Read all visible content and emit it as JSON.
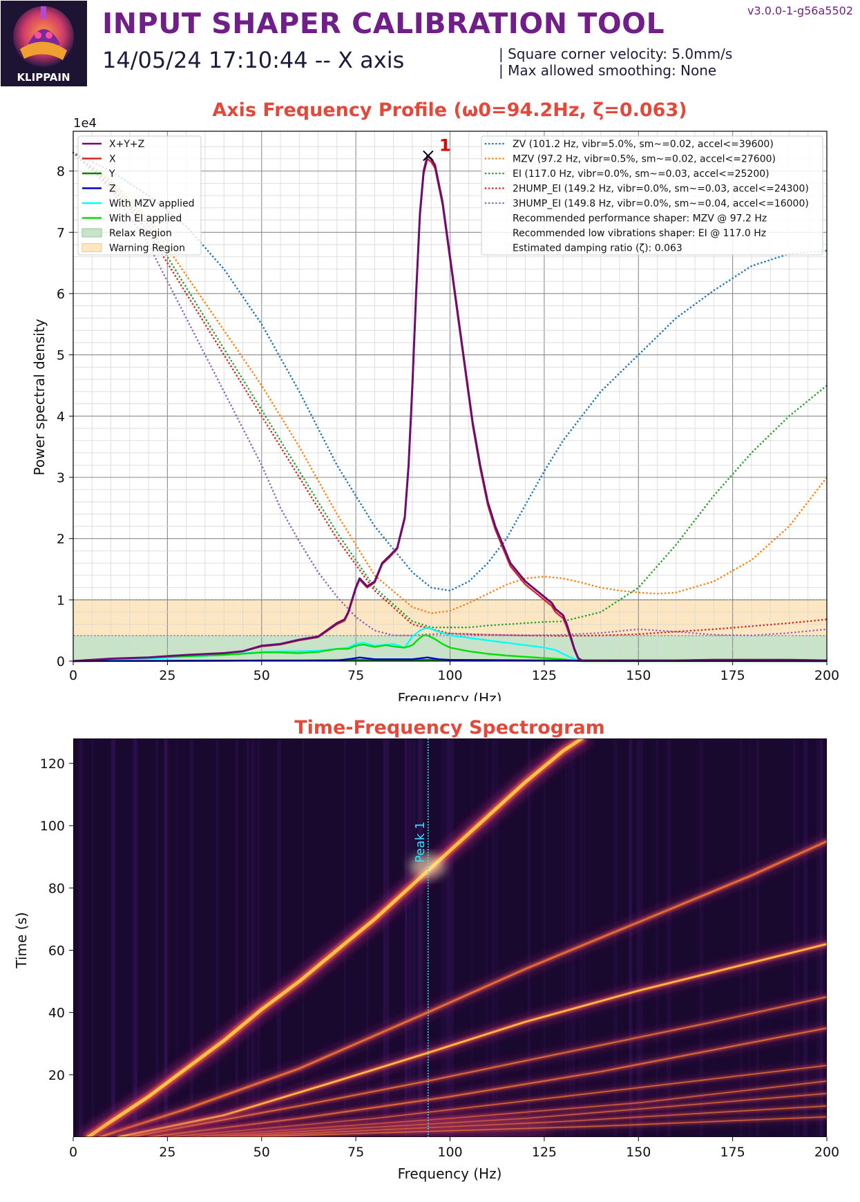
{
  "header": {
    "logo_text": "KLIPPAIN",
    "title": "INPUT SHAPER CALIBRATION TOOL",
    "subtitle": "14/05/24 17:10:44 -- X axis",
    "version": "v3.0.0-1-g56a5502",
    "info_line1": "| Square corner velocity: 5.0mm/s",
    "info_line2": "| Max allowed smoothing: None"
  },
  "colors": {
    "title_purple": "#701e88",
    "chart_title_red": "#e3493b",
    "sum_line": "#6a0f6f",
    "x_line": "#d62728",
    "y_line": "#008000",
    "z_line": "#0000cc",
    "mzv_applied": "#00ffff",
    "ei_applied": "#00e000",
    "relax_region": "#c8e4c8",
    "warning_region": "#fde7c3",
    "zv": "#1f77b4",
    "mzv": "#ff7f0e",
    "ei": "#2ca02c",
    "hump2": "#d62728",
    "hump3": "#9467bd"
  },
  "chart_data": [
    {
      "type": "line",
      "title": "Axis Frequency Profile (ω0=94.2Hz, ζ=0.063)",
      "xlabel": "Frequency (Hz)",
      "ylabel": "Power spectral density",
      "y_scale_label": "1e4",
      "xlim": [
        0,
        200
      ],
      "ylim": [
        0,
        8.65
      ],
      "x_ticks": [
        "0",
        "25",
        "50",
        "75",
        "100",
        "125",
        "150",
        "175",
        "200"
      ],
      "y_ticks": [
        "0",
        "1",
        "2",
        "3",
        "4",
        "5",
        "6",
        "7",
        "8"
      ],
      "grid": true,
      "peak": {
        "label": "1",
        "x": 94.2,
        "y": 8.25
      },
      "regions": [
        {
          "name": "Relax Region",
          "from": 0,
          "to": 0.42
        },
        {
          "name": "Warning Region",
          "from": 0.42,
          "to": 1.0
        }
      ],
      "legend_left": [
        "X+Y+Z",
        "X",
        "Y",
        "Z",
        "With MZV applied",
        "With EI applied",
        "Relax Region",
        "Warning Region"
      ],
      "legend_right": [
        "ZV (101.2 Hz, vibr=5.0%, sm~=0.02, accel<=39600)",
        "MZV (97.2 Hz, vibr=0.5%, sm~=0.02, accel<=27600)",
        "EI (117.0 Hz, vibr=0.0%, sm~=0.03, accel<=25200)",
        "2HUMP_EI (149.2 Hz, vibr=0.0%, sm~=0.03, accel<=24300)",
        "3HUMP_EI (149.8 Hz, vibr=0.0%, sm~=0.04, accel<=16000)",
        "Recommended performance shaper: MZV @ 97.2 Hz",
        "Recommended low vibrations shaper: EI @ 117.0 Hz",
        "Estimated damping ratio (ζ): 0.063"
      ],
      "series": [
        {
          "name": "X+Y+Z",
          "style": "solid",
          "color": "#6a0f6f",
          "x": [
            0,
            5,
            10,
            20,
            30,
            40,
            45,
            50,
            55,
            60,
            65,
            70,
            72,
            73,
            75,
            76,
            78,
            80,
            82,
            84,
            86,
            88,
            89,
            90,
            91,
            92,
            93,
            94,
            95,
            96,
            98,
            100,
            102,
            104,
            106,
            108,
            110,
            112,
            114,
            116,
            118,
            120,
            122,
            125,
            127,
            128,
            130,
            131,
            132,
            133,
            134,
            135,
            140,
            150,
            160,
            170,
            180,
            190,
            200
          ],
          "y": [
            0,
            0.02,
            0.04,
            0.06,
            0.1,
            0.13,
            0.16,
            0.25,
            0.28,
            0.35,
            0.4,
            0.62,
            0.68,
            0.8,
            1.2,
            1.35,
            1.22,
            1.3,
            1.6,
            1.72,
            1.85,
            2.35,
            3.2,
            4.5,
            6.0,
            7.3,
            8.0,
            8.25,
            8.2,
            8.1,
            7.5,
            6.6,
            5.7,
            4.8,
            3.9,
            3.2,
            2.6,
            2.2,
            1.9,
            1.6,
            1.45,
            1.3,
            1.2,
            1.05,
            0.95,
            0.85,
            0.75,
            0.6,
            0.4,
            0.2,
            0.05,
            0.01,
            0.01,
            0.01,
            0.01,
            0.02,
            0.02,
            0.02,
            0.01
          ]
        },
        {
          "name": "X",
          "style": "solid",
          "color": "#d62728",
          "x": [
            0,
            5,
            10,
            20,
            30,
            40,
            45,
            50,
            55,
            60,
            65,
            70,
            72,
            73,
            75,
            76,
            78,
            80,
            82,
            84,
            86,
            88,
            89,
            90,
            91,
            92,
            93,
            94,
            95,
            96,
            98,
            100,
            102,
            104,
            106,
            108,
            110,
            112,
            114,
            116,
            118,
            120,
            122,
            125,
            127,
            128,
            130,
            131,
            132,
            133,
            134,
            135,
            140,
            150,
            160,
            170,
            180,
            190,
            200
          ],
          "y": [
            0,
            0.02,
            0.04,
            0.06,
            0.1,
            0.13,
            0.16,
            0.24,
            0.27,
            0.34,
            0.39,
            0.6,
            0.66,
            0.78,
            1.18,
            1.33,
            1.2,
            1.28,
            1.58,
            1.7,
            1.83,
            2.32,
            3.15,
            4.45,
            5.95,
            7.25,
            7.95,
            8.2,
            8.15,
            8.05,
            7.45,
            6.55,
            5.65,
            4.75,
            3.85,
            3.15,
            2.55,
            2.15,
            1.85,
            1.55,
            1.4,
            1.25,
            1.15,
            1.0,
            0.9,
            0.8,
            0.7,
            0.55,
            0.37,
            0.18,
            0.04,
            0.01,
            0.01,
            0.01,
            0.01,
            0.02,
            0.02,
            0.02,
            0.01
          ]
        },
        {
          "name": "Y",
          "style": "solid",
          "color": "#008000",
          "x": [
            0,
            40,
            50,
            60,
            75,
            80,
            95,
            110,
            130,
            135,
            150,
            200
          ],
          "y": [
            0,
            0.005,
            0.01,
            0.01,
            0.02,
            0.015,
            0.02,
            0.02,
            0.01,
            0.005,
            0.005,
            0.005
          ]
        },
        {
          "name": "Z",
          "style": "solid",
          "color": "#0000cc",
          "x": [
            0,
            50,
            55,
            70,
            74,
            76,
            80,
            86,
            90,
            94,
            97,
            100,
            110,
            140,
            200
          ],
          "y": [
            0,
            0.01,
            0.01,
            0.01,
            0.04,
            0.06,
            0.03,
            0.03,
            0.03,
            0.06,
            0.03,
            0.02,
            0.01,
            0.005,
            0.0
          ]
        },
        {
          "name": "With MZV applied",
          "style": "solid",
          "color": "#00ffff",
          "x": [
            0,
            20,
            40,
            50,
            55,
            60,
            65,
            70,
            73,
            75,
            77,
            80,
            85,
            88,
            90,
            92,
            94,
            96,
            100,
            105,
            110,
            115,
            120,
            125,
            128,
            130,
            132,
            134,
            135,
            150,
            200
          ],
          "y": [
            0,
            0.04,
            0.1,
            0.15,
            0.16,
            0.16,
            0.17,
            0.2,
            0.22,
            0.28,
            0.3,
            0.25,
            0.28,
            0.22,
            0.4,
            0.5,
            0.55,
            0.5,
            0.42,
            0.38,
            0.34,
            0.3,
            0.26,
            0.22,
            0.18,
            0.12,
            0.06,
            0.01,
            0.0,
            0.0,
            0.0
          ]
        },
        {
          "name": "With EI applied",
          "style": "solid",
          "color": "#00e000",
          "x": [
            0,
            10,
            20,
            30,
            40,
            45,
            50,
            55,
            60,
            65,
            70,
            73,
            75,
            77,
            80,
            83,
            86,
            88,
            90,
            92,
            93,
            94,
            96,
            98,
            100,
            105,
            110,
            115,
            120,
            125,
            130,
            133,
            135,
            150,
            200
          ],
          "y": [
            0,
            0.04,
            0.06,
            0.08,
            0.1,
            0.12,
            0.14,
            0.14,
            0.13,
            0.15,
            0.2,
            0.2,
            0.25,
            0.27,
            0.23,
            0.26,
            0.23,
            0.22,
            0.26,
            0.38,
            0.42,
            0.42,
            0.36,
            0.28,
            0.22,
            0.16,
            0.12,
            0.09,
            0.07,
            0.05,
            0.03,
            0.01,
            0.0,
            0.0,
            0.0
          ]
        },
        {
          "name": "ZV",
          "style": "dotted",
          "color": "#1f77b4",
          "x": [
            0,
            10,
            20,
            30,
            40,
            50,
            60,
            70,
            80,
            90,
            95,
            100,
            105,
            110,
            115,
            120,
            125,
            130,
            140,
            150,
            160,
            170,
            180,
            190,
            200
          ],
          "y": [
            8.3,
            8.0,
            7.6,
            7.1,
            6.4,
            5.5,
            4.4,
            3.2,
            2.2,
            1.45,
            1.2,
            1.15,
            1.3,
            1.6,
            2.0,
            2.55,
            3.1,
            3.6,
            4.4,
            5.0,
            5.6,
            6.05,
            6.45,
            6.65,
            6.7
          ]
        },
        {
          "name": "MZV",
          "style": "dotted",
          "color": "#ff7f0e",
          "x": [
            0,
            10,
            20,
            30,
            40,
            50,
            60,
            70,
            80,
            90,
            95,
            100,
            105,
            110,
            115,
            120,
            125,
            130,
            135,
            140,
            145,
            150,
            155,
            160,
            170,
            180,
            190,
            200
          ],
          "y": [
            8.3,
            7.85,
            7.2,
            6.3,
            5.4,
            4.5,
            3.5,
            2.4,
            1.4,
            0.88,
            0.78,
            0.82,
            0.95,
            1.1,
            1.25,
            1.35,
            1.38,
            1.35,
            1.28,
            1.2,
            1.15,
            1.12,
            1.1,
            1.12,
            1.3,
            1.65,
            2.2,
            3.0
          ]
        },
        {
          "name": "EI",
          "style": "dotted",
          "color": "#2ca02c",
          "x": [
            0,
            10,
            20,
            30,
            40,
            50,
            60,
            70,
            80,
            90,
            95,
            100,
            105,
            110,
            115,
            120,
            125,
            130,
            140,
            150,
            160,
            170,
            180,
            190,
            200
          ],
          "y": [
            8.3,
            7.8,
            7.1,
            6.1,
            5.1,
            4.1,
            3.1,
            2.1,
            1.2,
            0.65,
            0.55,
            0.55,
            0.55,
            0.58,
            0.6,
            0.62,
            0.64,
            0.65,
            0.8,
            1.2,
            1.9,
            2.7,
            3.4,
            4.0,
            4.5
          ]
        },
        {
          "name": "2HUMP_EI",
          "style": "dotted",
          "color": "#d62728",
          "x": [
            0,
            10,
            20,
            30,
            40,
            50,
            60,
            70,
            80,
            90,
            100,
            110,
            120,
            130,
            140,
            150,
            160,
            170,
            180,
            190,
            200
          ],
          "y": [
            8.3,
            7.75,
            7.0,
            6.0,
            5.0,
            4.0,
            3.0,
            2.0,
            1.15,
            0.6,
            0.45,
            0.43,
            0.42,
            0.41,
            0.42,
            0.44,
            0.48,
            0.52,
            0.57,
            0.62,
            0.68
          ]
        },
        {
          "name": "3HUMP_EI",
          "style": "dotted",
          "color": "#9467bd",
          "x": [
            0,
            10,
            20,
            30,
            40,
            50,
            55,
            60,
            65,
            70,
            75,
            80,
            85,
            90,
            95,
            100,
            110,
            120,
            130,
            140,
            150,
            160,
            170,
            180,
            190,
            200
          ],
          "y": [
            8.3,
            7.7,
            6.8,
            5.6,
            4.4,
            3.2,
            2.5,
            1.95,
            1.45,
            1.05,
            0.72,
            0.5,
            0.42,
            0.42,
            0.44,
            0.45,
            0.43,
            0.42,
            0.43,
            0.46,
            0.52,
            0.48,
            0.43,
            0.42,
            0.46,
            0.52
          ]
        }
      ]
    },
    {
      "type": "heatmap",
      "title": "Time-Frequency Spectrogram",
      "xlabel": "Frequency (Hz)",
      "ylabel": "Time (s)",
      "xlim": [
        0,
        200
      ],
      "ylim": [
        0,
        128
      ],
      "x_ticks": [
        "0",
        "25",
        "50",
        "75",
        "100",
        "125",
        "150",
        "175",
        "200"
      ],
      "y_ticks": [
        "20",
        "40",
        "60",
        "80",
        "100",
        "120"
      ],
      "peak_marker": {
        "label": "Peak 1",
        "x": 94.2
      },
      "ridges": [
        {
          "x": [
            4,
            10,
            20,
            30,
            40,
            50,
            60,
            70,
            80,
            90,
            100,
            110,
            120,
            130,
            135
          ],
          "y": [
            0,
            5,
            13,
            22,
            31,
            41,
            50,
            60,
            70,
            81,
            92,
            103,
            114,
            124,
            128
          ],
          "intensity": 1.0,
          "width": 6
        },
        {
          "x": [
            7,
            30,
            60,
            94,
            120,
            150,
            180,
            200
          ],
          "y": [
            0,
            9,
            22,
            40,
            54,
            69,
            84,
            95
          ],
          "intensity": 0.5,
          "width": 3.5
        },
        {
          "x": [
            12,
            40,
            70,
            94,
            120,
            150,
            180,
            200
          ],
          "y": [
            0,
            7,
            18,
            27,
            37,
            47,
            56,
            62
          ],
          "intensity": 0.8,
          "width": 3.5
        },
        {
          "x": [
            15,
            60,
            94,
            130,
            170,
            200
          ],
          "y": [
            0,
            10,
            18,
            27,
            37,
            45
          ],
          "intensity": 0.45,
          "width": 2.5
        },
        {
          "x": [
            20,
            60,
            100,
            140,
            200
          ],
          "y": [
            0,
            6,
            13,
            21,
            35
          ],
          "intensity": 0.45,
          "width": 2.5
        },
        {
          "x": [
            25,
            80,
            130,
            200
          ],
          "y": [
            0,
            6,
            13,
            23
          ],
          "intensity": 0.4,
          "width": 2
        },
        {
          "x": [
            30,
            100,
            150,
            200
          ],
          "y": [
            0,
            6,
            11,
            18
          ],
          "intensity": 0.35,
          "width": 2
        },
        {
          "x": [
            35,
            120,
            200
          ],
          "y": [
            0,
            6,
            14
          ],
          "intensity": 0.35,
          "width": 2
        },
        {
          "x": [
            40,
            130,
            200
          ],
          "y": [
            0,
            5,
            10
          ],
          "intensity": 0.3,
          "width": 2
        },
        {
          "x": [
            45,
            140,
            200
          ],
          "y": [
            0,
            3.5,
            6.5
          ],
          "intensity": 0.3,
          "width": 2
        }
      ]
    }
  ]
}
